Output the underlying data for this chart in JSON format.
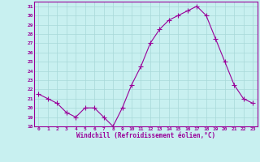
{
  "x": [
    0,
    1,
    2,
    3,
    4,
    5,
    6,
    7,
    8,
    9,
    10,
    11,
    12,
    13,
    14,
    15,
    16,
    17,
    18,
    19,
    20,
    21,
    22,
    23
  ],
  "y": [
    21.5,
    21.0,
    20.5,
    19.5,
    19.0,
    20.0,
    20.0,
    19.0,
    18.0,
    20.0,
    22.5,
    24.5,
    27.0,
    28.5,
    29.5,
    30.0,
    30.5,
    31.0,
    30.0,
    27.5,
    25.0,
    22.5,
    21.0,
    20.5
  ],
  "line_color": "#990099",
  "marker": "+",
  "marker_size": 4.0,
  "bg_color": "#c8f0f0",
  "grid_color": "#a8d8d8",
  "xlabel": "Windchill (Refroidissement éolien,°C)",
  "xlabel_color": "#990099",
  "tick_color": "#990099",
  "ylim": [
    18,
    31.5
  ],
  "yticks": [
    18,
    19,
    20,
    21,
    22,
    23,
    24,
    25,
    26,
    27,
    28,
    29,
    30,
    31
  ],
  "xticks": [
    0,
    1,
    2,
    3,
    4,
    5,
    6,
    7,
    8,
    9,
    10,
    11,
    12,
    13,
    14,
    15,
    16,
    17,
    18,
    19,
    20,
    21,
    22,
    23
  ],
  "spine_color": "#990099",
  "line_width": 0.8
}
